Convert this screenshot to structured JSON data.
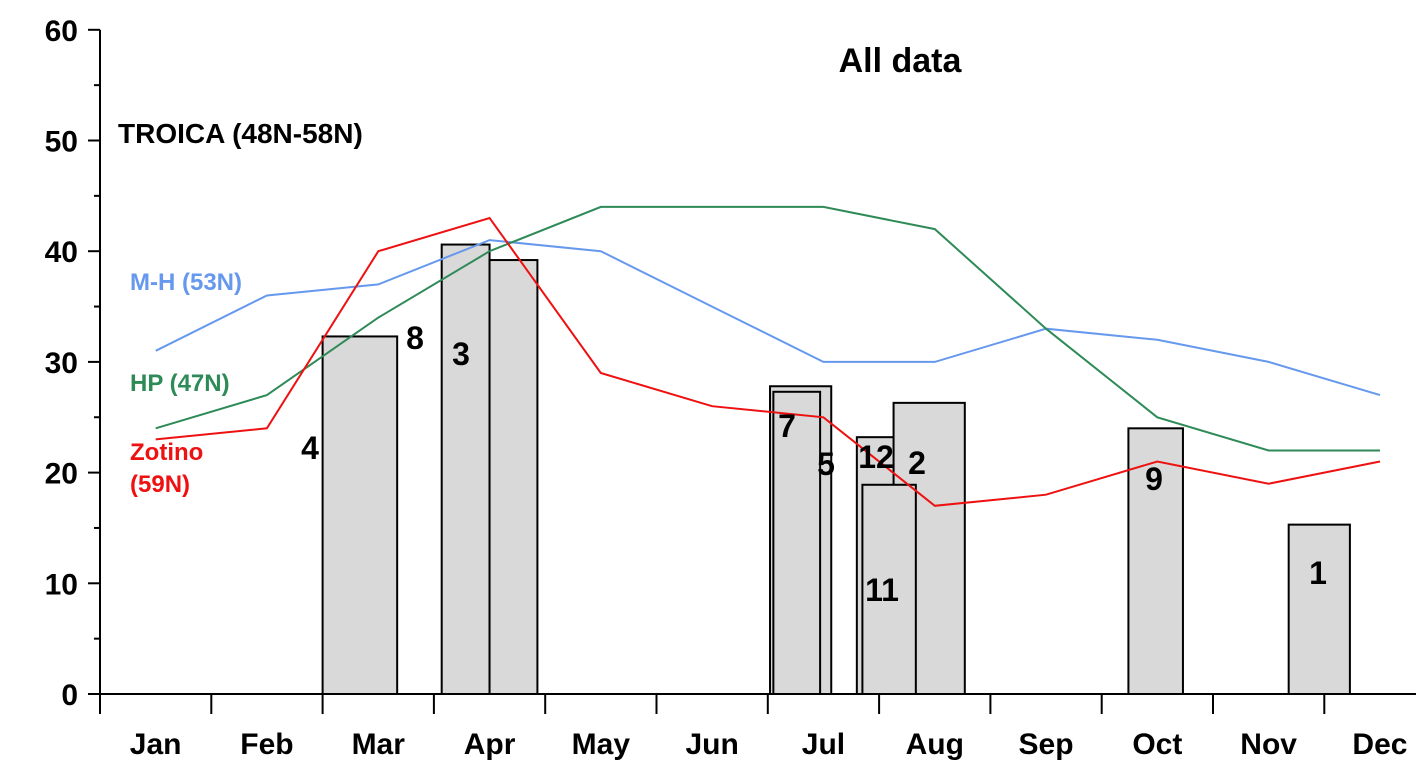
{
  "chart_data": {
    "type": "bar",
    "title": "All data",
    "annotation": "TROICA (48N-58N)",
    "xlabel": "",
    "ylabel": "",
    "ylim": [
      0,
      60
    ],
    "yticks": [
      "0",
      "10",
      "20",
      "30",
      "40",
      "50",
      "60"
    ],
    "categories": [
      "Jan",
      "Feb",
      "Mar",
      "Apr",
      "May",
      "Jun",
      "Jul",
      "Aug",
      "Sep",
      "Oct",
      "Nov",
      "Dec"
    ],
    "bars": [
      {
        "label": "4",
        "start": 2.0,
        "end": 2.67,
        "value": 32.3
      },
      {
        "label": "8",
        "start": 3.07,
        "end": 3.5,
        "value": 40.6
      },
      {
        "label": "3",
        "start": 3.5,
        "end": 3.93,
        "value": 39.2
      },
      {
        "label": "7",
        "start": 6.02,
        "end": 6.57,
        "value": 27.8
      },
      {
        "label": "5",
        "start": 6.05,
        "end": 6.47,
        "value": 27.3
      },
      {
        "label": "12",
        "start": 6.8,
        "end": 7.3,
        "value": 23.2
      },
      {
        "label": "2",
        "start": 7.13,
        "end": 7.77,
        "value": 26.3
      },
      {
        "label": "11",
        "start": 6.85,
        "end": 7.33,
        "value": 18.9
      },
      {
        "label": "9",
        "start": 9.24,
        "end": 9.73,
        "value": 24.0
      },
      {
        "label": "1",
        "start": 10.68,
        "end": 11.23,
        "value": 15.3
      }
    ],
    "series": [
      {
        "name": "M-H (53N)",
        "color": "#6699ee",
        "values": [
          31,
          36,
          37,
          41,
          40,
          35,
          30,
          30,
          33,
          32,
          30,
          27
        ]
      },
      {
        "name": "HP (47N)",
        "color": "#2e8b57",
        "values": [
          24,
          27,
          34,
          40,
          44,
          44,
          44,
          42,
          33,
          25,
          22,
          22
        ]
      },
      {
        "name": "Zotino\n(59N)",
        "color": "#ee1111",
        "values": [
          23,
          24,
          40,
          43,
          29,
          26,
          25,
          17,
          18,
          21,
          19,
          21
        ]
      }
    ]
  }
}
